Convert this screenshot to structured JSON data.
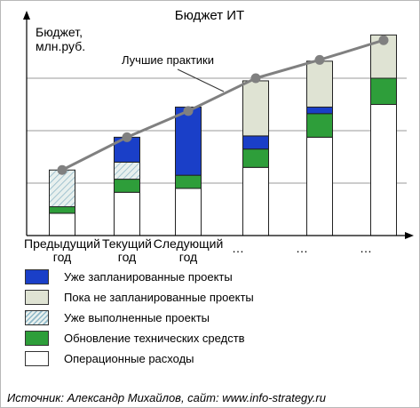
{
  "chart_data": {
    "type": "bar",
    "stacked": true,
    "title": "Бюджет ИТ",
    "ylabel_lines": [
      "Бюджет,",
      "млн.руб."
    ],
    "xlabel": "",
    "ylim": [
      0,
      8
    ],
    "grid": "horizontal",
    "categories": [
      [
        "Предыдущий",
        "год"
      ],
      [
        "Текущий",
        "год"
      ],
      [
        "Следующий",
        "год"
      ],
      [
        "…"
      ],
      [
        "…"
      ],
      [
        "…"
      ]
    ],
    "series": [
      {
        "key": "ops",
        "name": "Операционные расходы",
        "color": "#ffffff",
        "pattern": "none",
        "values": [
          0.85,
          1.65,
          1.8,
          2.6,
          3.75,
          5.0
        ]
      },
      {
        "key": "hw",
        "name": "Обновление технических средств",
        "color": "#2e9e3a",
        "pattern": "none",
        "values": [
          0.25,
          0.5,
          0.5,
          0.7,
          0.9,
          1.0
        ]
      },
      {
        "key": "done",
        "name": "Уже выполненные проекты",
        "color": "#dfe9e6",
        "pattern": "hatch",
        "values": [
          1.4,
          0.65,
          0,
          0,
          0,
          0
        ]
      },
      {
        "key": "planned",
        "name": "Уже запланированные проекты",
        "color": "#1a3fc8",
        "pattern": "none",
        "values": [
          0,
          0.95,
          2.6,
          0.5,
          0.25,
          0
        ]
      },
      {
        "key": "unplanned",
        "name": "Пока не запланированные проекты",
        "color": "#dfe3d3",
        "pattern": "none",
        "values": [
          0,
          0,
          0,
          2.1,
          1.75,
          1.65
        ]
      }
    ],
    "line_series": {
      "name": "Лучшие практики",
      "color": "#808080",
      "values": [
        2.5,
        3.75,
        4.75,
        6.0,
        6.7,
        7.45
      ]
    }
  },
  "legend_order": [
    "planned",
    "unplanned",
    "done",
    "hw",
    "ops"
  ],
  "source_text": "Источник: Александр Михайлов, сайт: www.info-strategy.ru"
}
